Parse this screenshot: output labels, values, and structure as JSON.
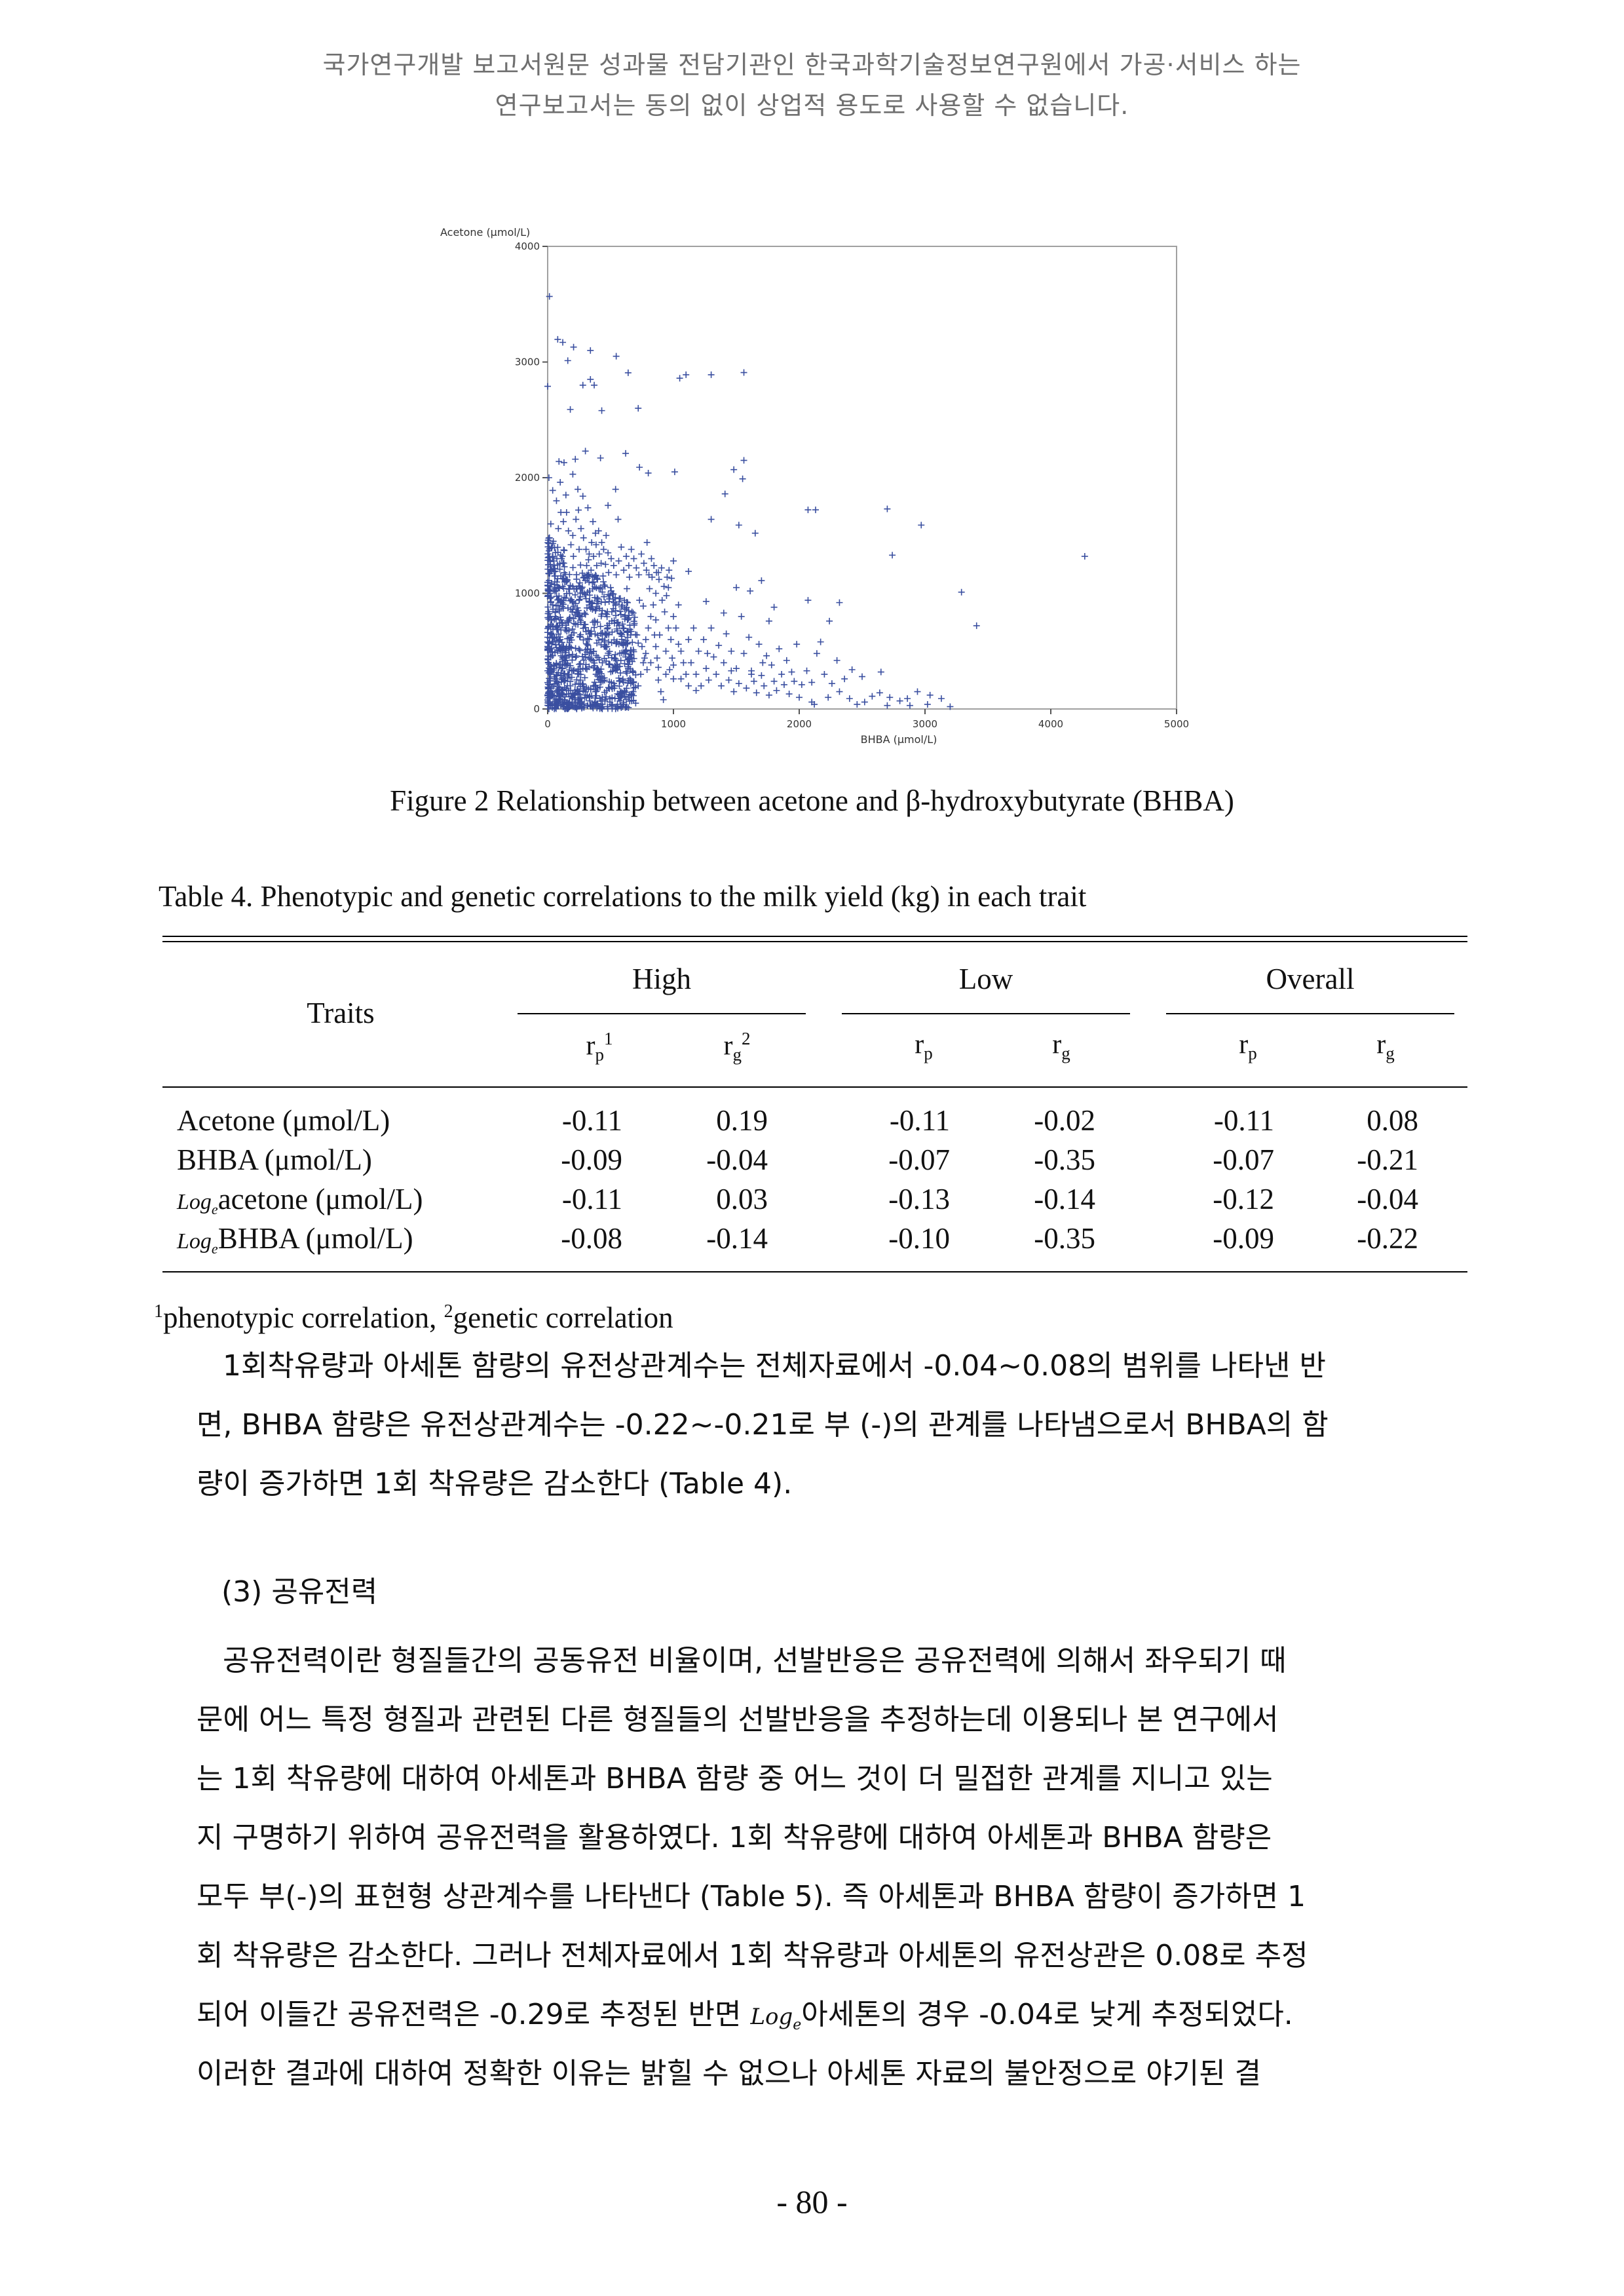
{
  "header_notice": {
    "line1": "국가연구개발 보고서원문 성과물 전담기관인 한국과학기술정보연구원에서 가공·서비스 하는",
    "line2": "연구보고서는 동의 없이 상업적 용도로 사용할 수 없습니다."
  },
  "figure": {
    "caption": "Figure 2 Relationship between acetone and β-hydroxybutyrate (BHBA)"
  },
  "chart_data": {
    "type": "scatter",
    "marker": "+",
    "marker_color": "#3a4fa0",
    "ylabel": "Acetone (μmol/L)",
    "xlabel": "BHBA (μmol/L)",
    "xlim": [
      0,
      5000
    ],
    "ylim": [
      0,
      4000
    ],
    "x_ticks": [
      "0",
      "1000",
      "2000",
      "3000",
      "4000",
      "5000"
    ],
    "y_ticks": [
      "0",
      "1000",
      "2000",
      "3000",
      "4000"
    ],
    "points": [
      [
        14,
        3567
      ],
      [
        80,
        3196
      ],
      [
        120,
        3170
      ],
      [
        206,
        3129
      ],
      [
        160,
        3012
      ],
      [
        340,
        3100
      ],
      [
        545,
        3050
      ],
      [
        370,
        2800
      ],
      [
        280,
        2800
      ],
      [
        0,
        2790
      ],
      [
        430,
        2580
      ],
      [
        180,
        2590
      ],
      [
        340,
        2850
      ],
      [
        640,
        2907
      ],
      [
        1560,
        2909
      ],
      [
        1300,
        2890
      ],
      [
        1100,
        2890
      ],
      [
        1050,
        2860
      ],
      [
        720,
        2600
      ],
      [
        90,
        2140
      ],
      [
        130,
        2130
      ],
      [
        220,
        2160
      ],
      [
        300,
        2230
      ],
      [
        420,
        2170
      ],
      [
        620,
        2210
      ],
      [
        730,
        2090
      ],
      [
        800,
        2040
      ],
      [
        1010,
        2050
      ],
      [
        1480,
        2070
      ],
      [
        1550,
        1990
      ],
      [
        1560,
        2150
      ],
      [
        1410,
        1860
      ],
      [
        1300,
        1640
      ],
      [
        1520,
        1590
      ],
      [
        1650,
        1520
      ],
      [
        2070,
        1722
      ],
      [
        2130,
        1722
      ],
      [
        2700,
        1730
      ],
      [
        2970,
        1590
      ],
      [
        2740,
        1330
      ],
      [
        4270,
        1320
      ],
      [
        3290,
        1010
      ],
      [
        3410,
        720
      ],
      [
        1610,
        1020
      ],
      [
        1700,
        1110
      ],
      [
        1800,
        880
      ],
      [
        2240,
        760
      ],
      [
        2320,
        920
      ],
      [
        2070,
        940
      ],
      [
        2170,
        580
      ],
      [
        1760,
        760
      ],
      [
        1710,
        400
      ],
      [
        2650,
        320
      ],
      [
        1400,
        830
      ],
      [
        1500,
        1050
      ],
      [
        1260,
        930
      ],
      [
        1120,
        1190
      ],
      [
        1000,
        1280
      ],
      [
        960,
        1050
      ],
      [
        880,
        1180
      ],
      [
        860,
        770
      ],
      [
        760,
        890
      ],
      [
        1040,
        560
      ],
      [
        1270,
        480
      ],
      [
        1460,
        330
      ],
      [
        1620,
        300
      ],
      [
        2000,
        100
      ],
      [
        2120,
        40
      ],
      [
        2230,
        100
      ],
      [
        2320,
        150
      ],
      [
        2400,
        90
      ],
      [
        2520,
        60
      ],
      [
        2580,
        110
      ],
      [
        2640,
        140
      ],
      [
        2720,
        100
      ],
      [
        2800,
        70
      ],
      [
        2860,
        90
      ],
      [
        2940,
        150
      ],
      [
        3040,
        120
      ],
      [
        3130,
        90
      ],
      [
        3200,
        20
      ],
      [
        3020,
        40
      ],
      [
        2880,
        30
      ],
      [
        2700,
        30
      ],
      [
        2460,
        40
      ],
      [
        2100,
        60
      ],
      [
        620,
        480
      ],
      [
        680,
        320
      ],
      [
        860,
        540
      ],
      [
        1000,
        260
      ],
      [
        790,
        1440
      ],
      [
        560,
        1640
      ],
      [
        540,
        1900
      ],
      [
        480,
        1760
      ],
      [
        360,
        1620
      ],
      [
        380,
        1520
      ],
      [
        280,
        1840
      ],
      [
        320,
        1740
      ],
      [
        240,
        1900
      ],
      [
        200,
        2030
      ],
      [
        100,
        1960
      ],
      [
        40,
        1890
      ],
      [
        150,
        1700
      ],
      [
        200,
        1500
      ],
      [
        250,
        1380
      ],
      [
        110,
        1300
      ],
      [
        30,
        1200
      ],
      [
        60,
        1150
      ],
      [
        150,
        1120
      ],
      [
        210,
        1040
      ],
      [
        260,
        970
      ],
      [
        330,
        900
      ],
      [
        430,
        820
      ],
      [
        510,
        760
      ],
      [
        600,
        700
      ],
      [
        660,
        640
      ],
      [
        720,
        570
      ],
      [
        780,
        480
      ],
      [
        820,
        400
      ],
      [
        880,
        360
      ],
      [
        940,
        300
      ],
      [
        1000,
        380
      ],
      [
        1060,
        260
      ],
      [
        1120,
        200
      ],
      [
        1180,
        160
      ],
      [
        20,
        1000
      ],
      [
        40,
        900
      ],
      [
        60,
        800
      ],
      [
        80,
        700
      ],
      [
        100,
        600
      ],
      [
        120,
        500
      ],
      [
        140,
        400
      ],
      [
        160,
        300
      ],
      [
        180,
        200
      ],
      [
        200,
        100
      ],
      [
        220,
        50
      ],
      [
        240,
        150
      ],
      [
        260,
        250
      ],
      [
        280,
        350
      ],
      [
        300,
        450
      ],
      [
        320,
        550
      ],
      [
        340,
        650
      ],
      [
        360,
        750
      ],
      [
        380,
        850
      ],
      [
        400,
        950
      ],
      [
        420,
        1050
      ],
      [
        440,
        1150
      ],
      [
        460,
        1250
      ],
      [
        480,
        1350
      ],
      [
        500,
        1050
      ],
      [
        520,
        950
      ],
      [
        540,
        850
      ],
      [
        560,
        750
      ],
      [
        580,
        650
      ],
      [
        600,
        550
      ],
      [
        620,
        450
      ],
      [
        640,
        350
      ],
      [
        660,
        250
      ],
      [
        680,
        150
      ],
      [
        700,
        50
      ],
      [
        720,
        200
      ],
      [
        740,
        300
      ],
      [
        760,
        400
      ],
      [
        780,
        600
      ],
      [
        800,
        700
      ],
      [
        820,
        800
      ],
      [
        840,
        900
      ],
      [
        860,
        1000
      ],
      [
        880,
        250
      ],
      [
        900,
        150
      ],
      [
        920,
        80
      ],
      [
        940,
        500
      ],
      [
        960,
        700
      ],
      [
        980,
        600
      ],
      [
        1000,
        800
      ],
      [
        1020,
        700
      ],
      [
        1040,
        900
      ],
      [
        1060,
        500
      ],
      [
        1080,
        400
      ],
      [
        1100,
        300
      ],
      [
        1120,
        600
      ],
      [
        1140,
        400
      ],
      [
        1160,
        700
      ],
      [
        1180,
        300
      ],
      [
        1200,
        500
      ],
      [
        1220,
        200
      ],
      [
        1240,
        600
      ],
      [
        1260,
        350
      ],
      [
        1280,
        250
      ],
      [
        1300,
        700
      ],
      [
        1320,
        450
      ],
      [
        1340,
        300
      ],
      [
        1360,
        550
      ],
      [
        1380,
        200
      ],
      [
        1400,
        400
      ],
      [
        1420,
        650
      ],
      [
        1440,
        250
      ],
      [
        1460,
        500
      ],
      [
        1480,
        150
      ],
      [
        1500,
        350
      ],
      [
        1520,
        220
      ],
      [
        1540,
        800
      ],
      [
        1560,
        480
      ],
      [
        1580,
        180
      ],
      [
        1600,
        620
      ],
      [
        1620,
        330
      ],
      [
        1640,
        240
      ],
      [
        1660,
        140
      ],
      [
        1680,
        560
      ],
      [
        1700,
        290
      ],
      [
        1720,
        200
      ],
      [
        1740,
        460
      ],
      [
        1760,
        120
      ],
      [
        1780,
        380
      ],
      [
        1800,
        240
      ],
      [
        1820,
        160
      ],
      [
        1840,
        520
      ],
      [
        1860,
        300
      ],
      [
        1880,
        210
      ],
      [
        1900,
        420
      ],
      [
        1920,
        130
      ],
      [
        1940,
        320
      ],
      [
        1960,
        240
      ],
      [
        1980,
        560
      ],
      [
        2020,
        210
      ],
      [
        2060,
        330
      ],
      [
        2100,
        230
      ],
      [
        2140,
        480
      ],
      [
        2200,
        300
      ],
      [
        2260,
        220
      ],
      [
        2300,
        420
      ],
      [
        2360,
        260
      ],
      [
        2420,
        340
      ],
      [
        2500,
        280
      ],
      [
        30,
        180
      ],
      [
        60,
        260
      ],
      [
        90,
        360
      ],
      [
        110,
        140
      ],
      [
        130,
        240
      ],
      [
        150,
        440
      ],
      [
        170,
        540
      ],
      [
        190,
        640
      ],
      [
        210,
        740
      ],
      [
        230,
        840
      ],
      [
        250,
        940
      ],
      [
        270,
        1040
      ],
      [
        290,
        1140
      ],
      [
        310,
        1240
      ],
      [
        330,
        1340
      ],
      [
        350,
        1440
      ],
      [
        370,
        1140
      ],
      [
        390,
        1240
      ],
      [
        410,
        1340
      ],
      [
        430,
        1440
      ],
      [
        450,
        540
      ],
      [
        470,
        640
      ],
      [
        490,
        740
      ],
      [
        510,
        840
      ],
      [
        530,
        440
      ],
      [
        550,
        340
      ],
      [
        570,
        240
      ],
      [
        590,
        140
      ],
      [
        610,
        940
      ],
      [
        630,
        1040
      ],
      [
        650,
        1140
      ],
      [
        670,
        840
      ],
      [
        690,
        740
      ],
      [
        710,
        640
      ],
      [
        730,
        940
      ],
      [
        750,
        540
      ],
      [
        770,
        440
      ],
      [
        790,
        340
      ],
      [
        810,
        1040
      ],
      [
        830,
        1140
      ],
      [
        850,
        640
      ],
      [
        870,
        440
      ],
      [
        890,
        640
      ],
      [
        910,
        940
      ],
      [
        930,
        840
      ],
      [
        950,
        1140
      ],
      [
        970,
        340
      ],
      [
        990,
        440
      ],
      [
        10,
        2000
      ],
      [
        25,
        1600
      ],
      [
        45,
        1450
      ],
      [
        70,
        1800
      ],
      [
        85,
        1560
      ],
      [
        105,
        1700
      ],
      [
        125,
        1620
      ],
      [
        145,
        1850
      ],
      [
        165,
        1540
      ],
      [
        185,
        1420
      ],
      [
        205,
        1320
      ],
      [
        225,
        1640
      ],
      [
        245,
        1720
      ],
      [
        265,
        1560
      ],
      [
        285,
        1480
      ],
      [
        305,
        1380
      ],
      [
        325,
        1290
      ],
      [
        345,
        1200
      ],
      [
        365,
        1320
      ],
      [
        385,
        1420
      ],
      [
        405,
        1540
      ],
      [
        425,
        1260
      ],
      [
        445,
        1380
      ],
      [
        465,
        1500
      ],
      [
        485,
        1180
      ],
      [
        505,
        1300
      ],
      [
        525,
        1240
      ],
      [
        545,
        1160
      ],
      [
        565,
        1280
      ],
      [
        585,
        1400
      ],
      [
        605,
        1200
      ],
      [
        625,
        1320
      ],
      [
        645,
        1240
      ],
      [
        665,
        1380
      ],
      [
        685,
        1300
      ],
      [
        705,
        1220
      ],
      [
        725,
        1160
      ],
      [
        745,
        1340
      ],
      [
        765,
        1260
      ],
      [
        785,
        1200
      ],
      [
        805,
        1160
      ],
      [
        825,
        1300
      ],
      [
        845,
        1240
      ],
      [
        865,
        1180
      ],
      [
        885,
        1120
      ],
      [
        905,
        1220
      ],
      [
        925,
        1060
      ],
      [
        945,
        980
      ],
      [
        965,
        1200
      ],
      [
        985,
        1130
      ],
      [
        15,
        50
      ],
      [
        35,
        120
      ],
      [
        55,
        60
      ],
      [
        75,
        30
      ],
      [
        95,
        90
      ],
      [
        115,
        40
      ],
      [
        135,
        80
      ],
      [
        155,
        20
      ],
      [
        175,
        60
      ],
      [
        195,
        30
      ],
      [
        215,
        80
      ],
      [
        235,
        20
      ],
      [
        255,
        60
      ],
      [
        275,
        40
      ],
      [
        295,
        100
      ],
      [
        315,
        30
      ],
      [
        335,
        70
      ],
      [
        355,
        20
      ],
      [
        375,
        60
      ],
      [
        395,
        30
      ],
      [
        415,
        90
      ],
      [
        435,
        40
      ],
      [
        455,
        70
      ],
      [
        475,
        20
      ],
      [
        495,
        60
      ],
      [
        515,
        30
      ],
      [
        535,
        90
      ],
      [
        555,
        40
      ],
      [
        575,
        70
      ],
      [
        595,
        20
      ]
    ]
  },
  "table": {
    "caption": "Table 4. Phenotypic and genetic correlations to the milk yield (kg) in each trait",
    "traits_header": "Traits",
    "groups": [
      "High",
      "Low",
      "Overall"
    ],
    "sub_headers": [
      {
        "base": "r",
        "sub": "p",
        "sup": "1"
      },
      {
        "base": "r",
        "sub": "g",
        "sup": "2"
      },
      {
        "base": "r",
        "sub": "p",
        "sup": ""
      },
      {
        "base": "r",
        "sub": "g",
        "sup": ""
      },
      {
        "base": "r",
        "sub": "p",
        "sup": ""
      },
      {
        "base": "r",
        "sub": "g",
        "sup": ""
      }
    ],
    "rows": [
      {
        "log": "",
        "label": "Acetone (μmol/L)",
        "values": [
          "-0.11",
          "0.19",
          "-0.11",
          "-0.02",
          "-0.11",
          "0.08"
        ]
      },
      {
        "log": "",
        "label": "BHBA (μmol/L)",
        "values": [
          "-0.09",
          "-0.04",
          "-0.07",
          "-0.35",
          "-0.07",
          "-0.21"
        ]
      },
      {
        "log": "Loge",
        "label": "acetone (μmol/L)",
        "values": [
          "-0.11",
          "0.03",
          "-0.13",
          "-0.14",
          "-0.12",
          "-0.04"
        ]
      },
      {
        "log": "Loge",
        "label": "BHBA (μmol/L)",
        "values": [
          "-0.08",
          "-0.14",
          "-0.10",
          "-0.35",
          "-0.09",
          "-0.22"
        ]
      }
    ],
    "footnote": {
      "mark1": "1",
      "text1": "phenotypic correlation, ",
      "mark2": "2",
      "text2": "genetic correlation"
    }
  },
  "paragraph1": [
    "1회착유량과 아세톤 함량의 유전상관계수는 전체자료에서 -0.04~0.08의 범위를 나타낸 반",
    "면, BHBA 함량은 유전상관계수는 -0.22~-0.21로 부 (-)의 관계를 나타냄으로서 BHBA의 함",
    "량이 증가하면 1회 착유량은 감소한다 (Table 4)."
  ],
  "section_heading": "(3) 공유전력",
  "paragraph2": [
    "공유전력이란 형질들간의 공동유전 비율이며, 선발반응은 공유전력에 의해서 좌우되기 때",
    "문에 어느 특정 형질과 관련된 다른 형질들의 선발반응을 추정하는데 이용되나 본 연구에서",
    "는 1회 착유량에 대하여 아세톤과 BHBA 함량 중 어느 것이 더 밀접한 관계를 지니고 있는",
    "지 구명하기 위하여 공유전력을 활용하였다. 1회 착유량에 대하여 아세톤과 BHBA 함량은",
    "모두 부(-)의 표현형 상관계수를 나타낸다 (Table 5). 즉 아세톤과 BHBA 함량이 증가하면 1",
    "회 착유량은 감소한다. 그러나 전체자료에서 1회 착유량과 아세톤의 유전상관은 0.08로 추정"
  ],
  "paragraph2_line7": {
    "before": "되어 이들간 공유전력은 -0.29로 추정된 반면 ",
    "log": "Loge",
    "after": "아세톤의 경우 -0.04로 낮게 추정되었다."
  },
  "paragraph2_line8": "이러한 결과에 대하여 정확한 이유는 밝힐 수 없으나 아세톤 자료의 불안정으로 야기된 결",
  "page_number": "- 80 -"
}
